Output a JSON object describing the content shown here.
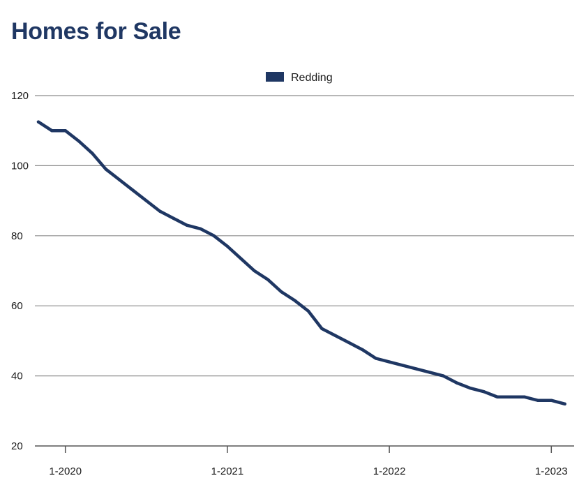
{
  "chart_data": {
    "type": "line",
    "title": "Homes for Sale",
    "xlabel": "",
    "ylabel": "",
    "ylim": [
      20,
      120
    ],
    "yticks": [
      20,
      40,
      60,
      80,
      100,
      120
    ],
    "xticks": [
      "1-2020",
      "1-2021",
      "1-2022",
      "1-2023"
    ],
    "grid": true,
    "legend_position": "top-center",
    "colors": {
      "series": "#1f3763",
      "grid": "#8c8c8c",
      "title": "#1f3763"
    },
    "x": [
      "11-2019",
      "12-2019",
      "1-2020",
      "2-2020",
      "3-2020",
      "4-2020",
      "5-2020",
      "6-2020",
      "7-2020",
      "8-2020",
      "9-2020",
      "10-2020",
      "11-2020",
      "12-2020",
      "1-2021",
      "2-2021",
      "3-2021",
      "4-2021",
      "5-2021",
      "6-2021",
      "7-2021",
      "8-2021",
      "9-2021",
      "10-2021",
      "11-2021",
      "12-2021",
      "1-2022",
      "2-2022",
      "3-2022",
      "4-2022",
      "5-2022",
      "6-2022",
      "7-2022",
      "8-2022",
      "9-2022",
      "10-2022",
      "11-2022",
      "12-2022",
      "1-2023",
      "2-2023"
    ],
    "series": [
      {
        "name": "Redding",
        "values": [
          112.5,
          110,
          110,
          107,
          103.5,
          99,
          96,
          93,
          90,
          87,
          85,
          83,
          82,
          80,
          77,
          73.5,
          70,
          67.5,
          64,
          61.5,
          58.5,
          53.5,
          51.5,
          49.5,
          47.5,
          45,
          44,
          43,
          42,
          41,
          40,
          38,
          36.5,
          35.5,
          34,
          34,
          34,
          33,
          33,
          32
        ]
      }
    ]
  }
}
